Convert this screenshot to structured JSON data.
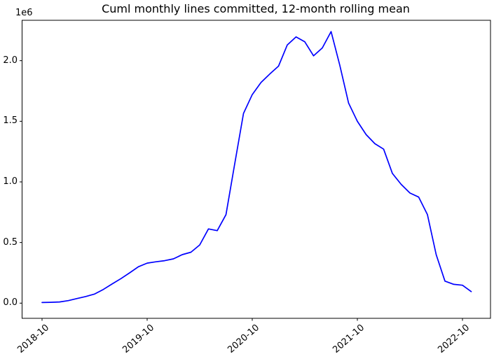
{
  "figure": {
    "background_color": "#ffffff",
    "spine_color": "#000000"
  },
  "chart_data": {
    "type": "line",
    "title": "Cuml monthly lines committed, 12-month rolling mean",
    "xlabel": "",
    "ylabel": "",
    "line_color": "#0000ff",
    "grid": false,
    "legend": false,
    "y_offset_label": "1e6",
    "y_tick_labels": [
      "0.0",
      "0.5",
      "1.0",
      "1.5",
      "2.0"
    ],
    "y_tick_values": [
      0,
      500000,
      1000000,
      1500000,
      2000000
    ],
    "x_tick_labels": [
      "2018-10",
      "2019-10",
      "2020-10",
      "2021-10",
      "2022-10"
    ],
    "x_tick_indices": [
      0,
      12,
      24,
      36,
      48
    ],
    "ylim": [
      -105000,
      2335000
    ],
    "x": [
      "2018-10",
      "2018-11",
      "2018-12",
      "2019-01",
      "2019-02",
      "2019-03",
      "2019-04",
      "2019-05",
      "2019-06",
      "2019-07",
      "2019-08",
      "2019-09",
      "2019-10",
      "2019-11",
      "2019-12",
      "2020-01",
      "2020-02",
      "2020-03",
      "2020-04",
      "2020-05",
      "2020-06",
      "2020-07",
      "2020-08",
      "2020-09",
      "2020-10",
      "2020-11",
      "2020-12",
      "2021-01",
      "2021-02",
      "2021-03",
      "2021-04",
      "2021-05",
      "2021-06",
      "2021-07",
      "2021-08",
      "2021-09",
      "2021-10",
      "2021-11",
      "2021-12",
      "2022-01",
      "2022-02",
      "2022-03",
      "2022-04",
      "2022-05",
      "2022-06",
      "2022-07",
      "2022-08",
      "2022-09",
      "2022-10",
      "2022-11"
    ],
    "values": [
      5000,
      7000,
      10000,
      21000,
      38000,
      55000,
      75000,
      113000,
      158000,
      202000,
      250000,
      300000,
      330000,
      341000,
      350000,
      365000,
      400000,
      420000,
      480000,
      612000,
      598000,
      730000,
      1150000,
      1565000,
      1720000,
      1820000,
      1890000,
      1955000,
      2130000,
      2196000,
      2155000,
      2040000,
      2105000,
      2240000,
      1960000,
      1650000,
      1500000,
      1390000,
      1315000,
      1270000,
      1070000,
      980000,
      908000,
      875000,
      730000,
      400000,
      182000,
      155000,
      148000,
      95000
    ]
  }
}
